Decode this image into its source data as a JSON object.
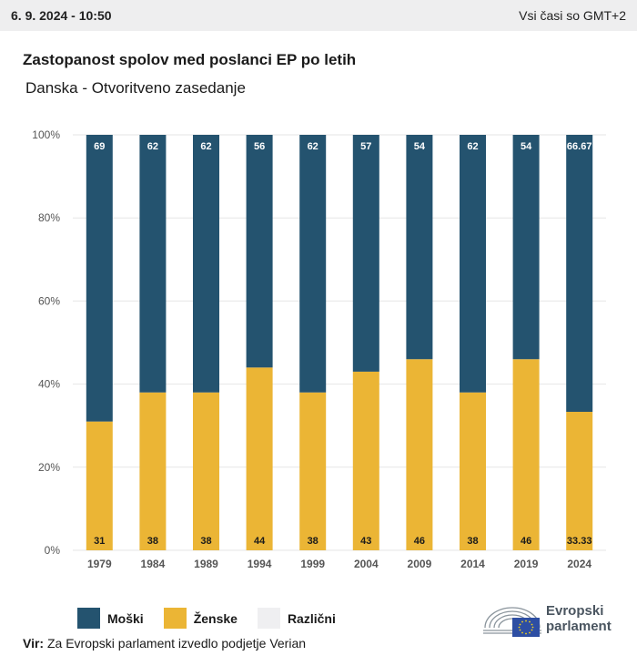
{
  "header": {
    "date": "6. 9. 2024 - 10:50",
    "timezone": "Vsi časi so GMT+2"
  },
  "colors": {
    "male": "#24536f",
    "female": "#ebb535",
    "other": "#efeff1",
    "grid": "#e6e6e6",
    "axis_text": "#555555"
  },
  "chart_data": {
    "type": "bar",
    "stacked": true,
    "title": "Zastopanost spolov med poslanci EP po letih",
    "subtitle": "Danska - Otvoritveno zasedanje",
    "categories": [
      "1979",
      "1984",
      "1989",
      "1994",
      "1999",
      "2004",
      "2009",
      "2014",
      "2019",
      "2024"
    ],
    "series": [
      {
        "name": "Ženske",
        "values": [
          31,
          38,
          38,
          44,
          38,
          43,
          46,
          38,
          46,
          33.33
        ],
        "color": "#ebb535"
      },
      {
        "name": "Moški",
        "values": [
          69,
          62,
          62,
          56,
          62,
          57,
          54,
          62,
          54,
          66.67
        ],
        "color": "#24536f"
      },
      {
        "name": "Različni",
        "values": [
          0,
          0,
          0,
          0,
          0,
          0,
          0,
          0,
          0,
          0
        ],
        "color": "#efeff1"
      }
    ],
    "yticks": [
      "0%",
      "20%",
      "40%",
      "60%",
      "80%",
      "100%"
    ],
    "ylim": [
      0,
      100
    ],
    "grid": true,
    "legend": "bottom-left"
  },
  "legend": [
    {
      "label": "Moški",
      "color": "#24536f"
    },
    {
      "label": "Ženske",
      "color": "#ebb535"
    },
    {
      "label": "Različni",
      "color": "#efeff1"
    }
  ],
  "source": {
    "prefix": "Vir:",
    "text": "Za Evropski parlament izvedlo podjetje Verian"
  },
  "logo": {
    "line1": "Evropski",
    "line2": "parlament"
  }
}
